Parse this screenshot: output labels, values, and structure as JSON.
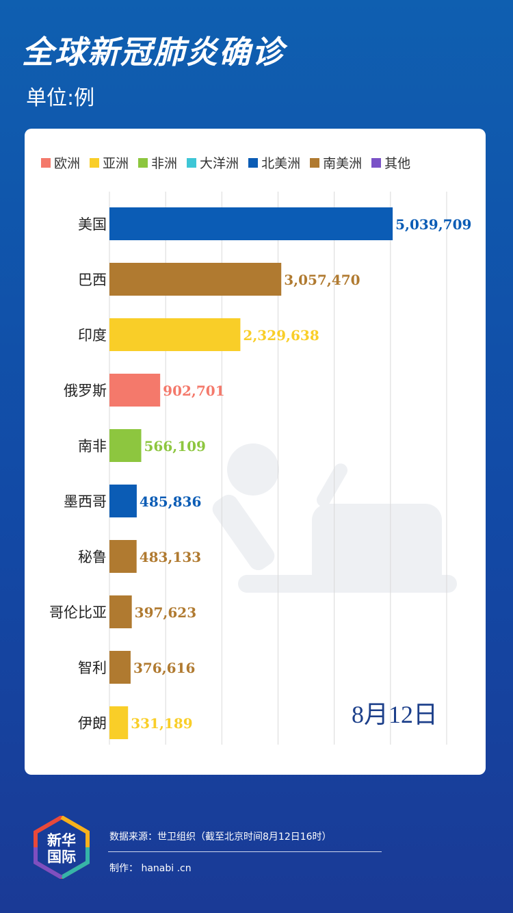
{
  "header": {
    "title": "全球新冠肺炎确诊",
    "unit": "单位:例"
  },
  "legend": [
    {
      "label": "欧洲",
      "color": "#f4796b"
    },
    {
      "label": "亚洲",
      "color": "#f9ce28"
    },
    {
      "label": "非洲",
      "color": "#8dc63f"
    },
    {
      "label": "大洋洲",
      "color": "#3ec6d6"
    },
    {
      "label": "北美洲",
      "color": "#0b5cb5"
    },
    {
      "label": "南美洲",
      "color": "#b07a30"
    },
    {
      "label": "其他",
      "color": "#7a52c7"
    }
  ],
  "chart_data": {
    "type": "bar",
    "orientation": "horizontal",
    "categories": [
      "美国",
      "巴西",
      "印度",
      "俄罗斯",
      "南非",
      "墨西哥",
      "秘鲁",
      "哥伦比亚",
      "智利",
      "伊朗"
    ],
    "values": [
      5039709,
      3057470,
      2329638,
      902701,
      566109,
      485836,
      483133,
      397623,
      376616,
      331189
    ],
    "value_labels": [
      "5,039,709",
      "3,057,470",
      "2,329,638",
      "902,701",
      "566,109",
      "485,836",
      "483,133",
      "397,623",
      "376,616",
      "331,189"
    ],
    "regions": [
      "北美洲",
      "南美洲",
      "亚洲",
      "欧洲",
      "非洲",
      "北美洲",
      "南美洲",
      "南美洲",
      "南美洲",
      "亚洲"
    ],
    "xlim": [
      0,
      6000000
    ],
    "grid": true,
    "annotation": "8月12日"
  },
  "footer": {
    "logo_text": "新华\n国际",
    "source": "数据来源：世卫组织（截至北京时间8月12日16时）",
    "maker": "制作： hanabi .cn"
  }
}
